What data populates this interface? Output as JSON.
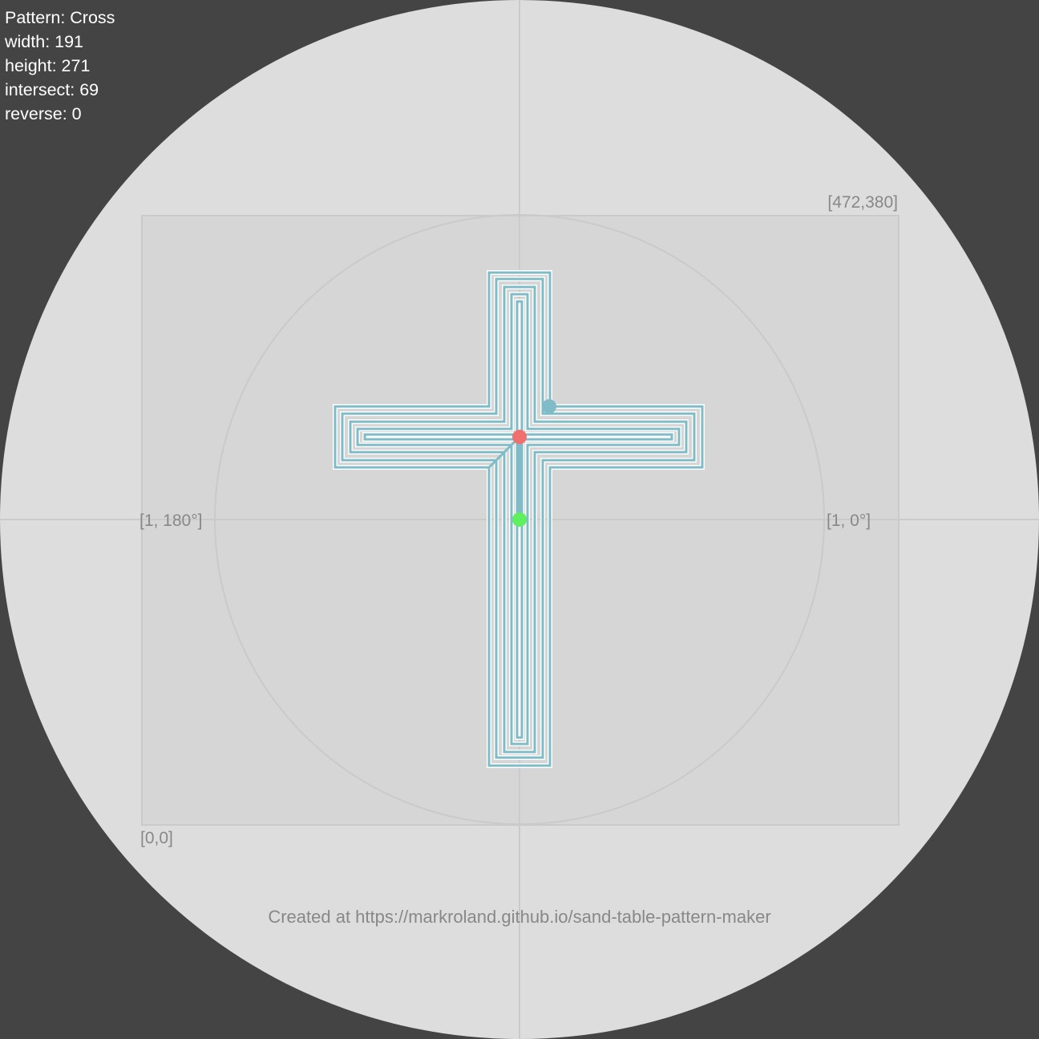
{
  "info": {
    "pattern": "Pattern: Cross",
    "width": "width: 191",
    "height": "height: 271",
    "intersect": "intersect: 69",
    "reverse": "reverse: 0"
  },
  "labels": {
    "top_right_corner": "[472,380]",
    "bottom_left_corner": "[0,0]",
    "polar_left": "[1, 180°]",
    "polar_right": "[1, 0°]"
  },
  "footer": "Created at https://markroland.github.io/sand-table-pattern-maker",
  "colors": {
    "background": "#444444",
    "table": "#dddddd",
    "rect_fill": "#d6d6d6",
    "guide": "#c8c8c8",
    "path": "#7fbcc8",
    "path_halo": "#ffffff",
    "start_point": "#5ef05e",
    "end_point": "#7fbcc8",
    "center_point": "#f07070"
  },
  "markers": {
    "start": "start-point",
    "end": "end-point",
    "center": "center-point"
  }
}
